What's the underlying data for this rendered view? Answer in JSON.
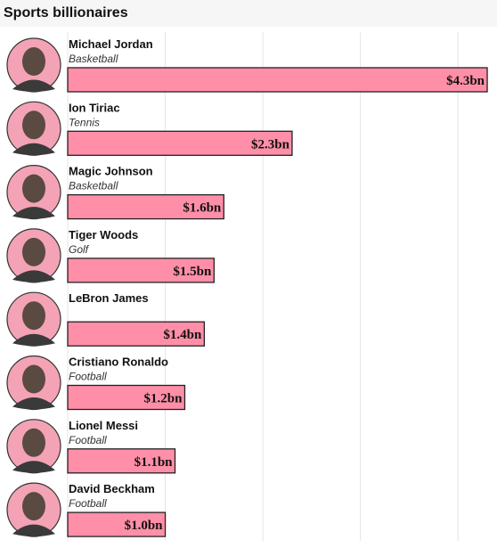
{
  "chart_data": {
    "type": "bar",
    "orientation": "horizontal",
    "title": "Sports billionaires",
    "categories": [
      "Michael Jordan",
      "Ion Tiriac",
      "Magic Johnson",
      "Tiger Woods",
      "LeBron James",
      "Cristiano Ronaldo",
      "Lionel Messi",
      "David Beckham"
    ],
    "sports": [
      "Basketball",
      "Tennis",
      "Basketball",
      "Golf",
      null,
      "Football",
      "Football",
      "Football"
    ],
    "values": [
      4.3,
      2.3,
      1.6,
      1.5,
      1.4,
      1.2,
      1.1,
      1.0
    ],
    "value_labels": [
      "$4.3bn",
      "$2.3bn",
      "$1.6bn",
      "$1.5bn",
      "$1.4bn",
      "$1.2bn",
      "$1.1bn",
      "$1.0bn"
    ],
    "color": "#ff8fa8",
    "xlim": [
      0,
      4.4
    ],
    "xticks": [
      0,
      1,
      2,
      3,
      4
    ],
    "grid": true
  }
}
